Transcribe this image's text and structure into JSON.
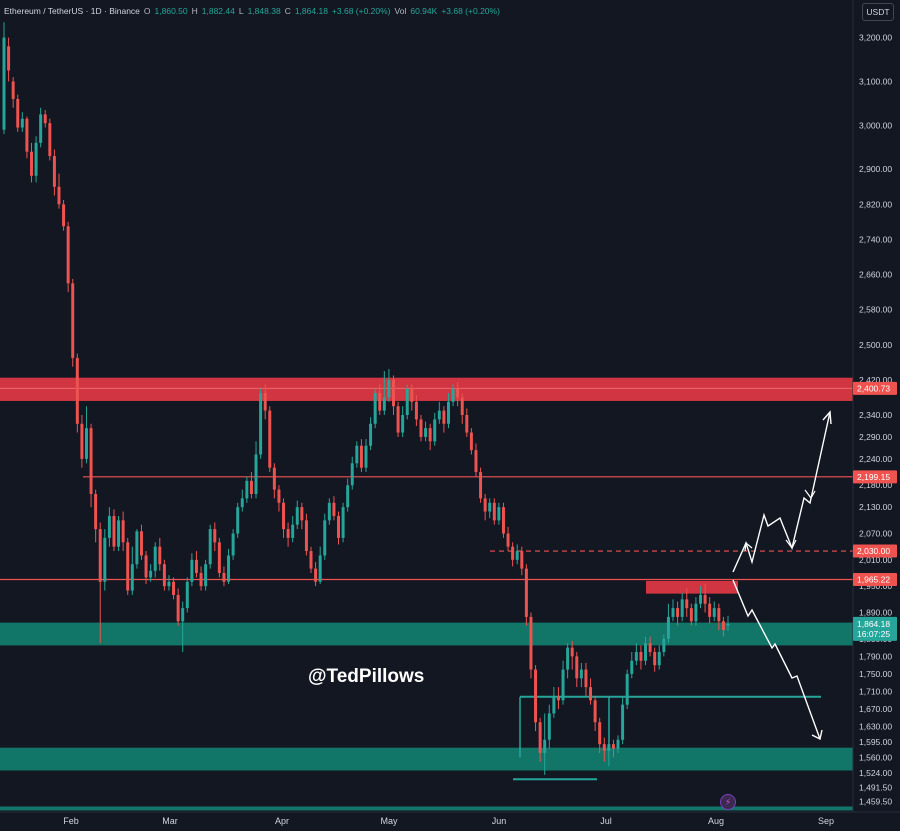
{
  "header": {
    "symbol": "Ethereum / TetherUS · 1D · Binance",
    "o_label": "O",
    "o_value": "1,860.50",
    "h_label": "H",
    "h_value": "1,882.44",
    "l_label": "L",
    "l_value": "1,848.38",
    "c_label": "C",
    "c_value": "1,864.18",
    "change": "+3.68 (+0.20%)",
    "vol_label": "Vol",
    "vol_value": "60.94K",
    "vol_change": "+3.68 (+0.20%)",
    "currency": "USDT"
  },
  "watermark": "@TedPillows",
  "colors": {
    "background": "#131722",
    "up": "#26a69a",
    "down": "#ef5350",
    "resistance_zone": "#e53945",
    "support_zone": "#128070",
    "axis_text": "#d1d4dc"
  },
  "icons": [
    "flash-icon"
  ],
  "chart_data": {
    "type": "candlestick",
    "symbol": "ETHUSDT",
    "interval": "1D",
    "ylim": [
      1440,
      3240
    ],
    "y_ticks": [
      {
        "v": 3200,
        "label": "3,200.00"
      },
      {
        "v": 3100,
        "label": "3,100.00"
      },
      {
        "v": 3000,
        "label": "3,000.00"
      },
      {
        "v": 2900,
        "label": "2,900.00"
      },
      {
        "v": 2820,
        "label": "2,820.00"
      },
      {
        "v": 2740,
        "label": "2,740.00"
      },
      {
        "v": 2660,
        "label": "2,660.00"
      },
      {
        "v": 2580,
        "label": "2,580.00"
      },
      {
        "v": 2500,
        "label": "2,500.00"
      },
      {
        "v": 2420,
        "label": "2,420.00"
      },
      {
        "v": 2340,
        "label": "2,340.00"
      },
      {
        "v": 2290,
        "label": "2,290.00"
      },
      {
        "v": 2240,
        "label": "2,240.00"
      },
      {
        "v": 2180,
        "label": "2,180.00"
      },
      {
        "v": 2130,
        "label": "2,130.00"
      },
      {
        "v": 2070,
        "label": "2,070.00"
      },
      {
        "v": 2010,
        "label": "2,010.00"
      },
      {
        "v": 1950,
        "label": "1,950.00"
      },
      {
        "v": 1890,
        "label": "1,890.00"
      },
      {
        "v": 1830,
        "label": "1,830.00"
      },
      {
        "v": 1790,
        "label": "1,790.00"
      },
      {
        "v": 1750,
        "label": "1,750.00"
      },
      {
        "v": 1710,
        "label": "1,710.00"
      },
      {
        "v": 1670,
        "label": "1,670.00"
      },
      {
        "v": 1630,
        "label": "1,630.00"
      },
      {
        "v": 1595,
        "label": "1,595.00"
      },
      {
        "v": 1560,
        "label": "1,560.00"
      },
      {
        "v": 1524,
        "label": "1,524.00"
      },
      {
        "v": 1491.5,
        "label": "1,491.50"
      },
      {
        "v": 1459.5,
        "label": "1,459.50"
      }
    ],
    "x_ticks": [
      "Feb",
      "Mar",
      "Apr",
      "May",
      "Jun",
      "Jul",
      "Aug",
      "Sep"
    ],
    "price_labels": [
      {
        "v": 2400.73,
        "label": "2,400.73"
      },
      {
        "v": 2199.15,
        "label": "2,199.15"
      },
      {
        "v": 2030.0,
        "label": "2,030.00"
      },
      {
        "v": 1965.22,
        "label": "1,965.22"
      }
    ],
    "current_price": {
      "v": 1864.18,
      "label": "1,864.18",
      "countdown": "16:07:25"
    },
    "zones": [
      {
        "kind": "resistance",
        "y_from": 2372,
        "y_to": 2425
      },
      {
        "kind": "resistance",
        "y_from": 1933,
        "y_to": 1962
      },
      {
        "kind": "support",
        "y_from": 1815,
        "y_to": 1867
      },
      {
        "kind": "support",
        "y_from": 1530,
        "y_to": 1582
      },
      {
        "kind": "support",
        "y_from": 1439,
        "y_to": 1448
      }
    ],
    "levels": [
      {
        "v": 2199.15,
        "color": "#ef5350",
        "style": "solid"
      },
      {
        "v": 2030,
        "color": "#ef5350",
        "style": "dashed"
      },
      {
        "v": 1965.22,
        "color": "#ef5350",
        "style": "solid"
      },
      {
        "v": 1698,
        "color": "#26a69a",
        "style": "solid"
      },
      {
        "v": 1510,
        "color": "#26a69a",
        "style": "solid"
      }
    ],
    "candles": [
      [
        2990,
        3200,
        3235,
        2980
      ],
      [
        3180,
        3125,
        3200,
        3100
      ],
      [
        3100,
        3060,
        3110,
        3040
      ],
      [
        3060,
        2995,
        3070,
        2985
      ],
      [
        2995,
        3015,
        3030,
        2985
      ],
      [
        3015,
        2940,
        3020,
        2925
      ],
      [
        2940,
        2885,
        2960,
        2870
      ],
      [
        2885,
        2960,
        2975,
        2870
      ],
      [
        2960,
        3025,
        3040,
        2950
      ],
      [
        3025,
        3005,
        3035,
        2995
      ],
      [
        3005,
        2930,
        3015,
        2920
      ],
      [
        2930,
        2860,
        2945,
        2840
      ],
      [
        2860,
        2820,
        2890,
        2810
      ],
      [
        2820,
        2770,
        2830,
        2760
      ],
      [
        2770,
        2640,
        2780,
        2620
      ],
      [
        2640,
        2470,
        2650,
        2450
      ],
      [
        2470,
        2320,
        2480,
        2300
      ],
      [
        2320,
        2240,
        2340,
        2220
      ],
      [
        2240,
        2310,
        2360,
        2230
      ],
      [
        2310,
        2160,
        2320,
        2130
      ],
      [
        2160,
        2080,
        2170,
        2050
      ],
      [
        2080,
        1960,
        2095,
        1820
      ],
      [
        1960,
        2060,
        2080,
        1940
      ],
      [
        2060,
        2110,
        2130,
        2040
      ],
      [
        2110,
        2040,
        2125,
        2030
      ],
      [
        2040,
        2100,
        2110,
        2030
      ],
      [
        2100,
        2050,
        2120,
        2030
      ],
      [
        2050,
        1940,
        2060,
        1930
      ],
      [
        1940,
        2000,
        2040,
        1930
      ],
      [
        2000,
        2075,
        2080,
        1990
      ],
      [
        2075,
        2020,
        2090,
        2010
      ],
      [
        2020,
        1970,
        2030,
        1955
      ],
      [
        1970,
        1985,
        2000,
        1960
      ],
      [
        1985,
        2040,
        2050,
        1970
      ],
      [
        2040,
        2000,
        2060,
        1985
      ],
      [
        2000,
        1950,
        2010,
        1940
      ],
      [
        1950,
        1960,
        1975,
        1940
      ],
      [
        1960,
        1930,
        1970,
        1920
      ],
      [
        1930,
        1870,
        1945,
        1860
      ],
      [
        1870,
        1900,
        1915,
        1800
      ],
      [
        1900,
        1960,
        1970,
        1890
      ],
      [
        1960,
        2010,
        2025,
        1950
      ],
      [
        2010,
        1980,
        2030,
        1970
      ],
      [
        1980,
        1950,
        1995,
        1940
      ],
      [
        1950,
        2000,
        2010,
        1940
      ],
      [
        2000,
        2080,
        2090,
        1990
      ],
      [
        2080,
        2050,
        2095,
        2030
      ],
      [
        2050,
        1980,
        2060,
        1970
      ],
      [
        1980,
        1960,
        1995,
        1950
      ],
      [
        1960,
        2020,
        2035,
        1955
      ],
      [
        2020,
        2070,
        2080,
        2010
      ],
      [
        2070,
        2130,
        2140,
        2060
      ],
      [
        2130,
        2150,
        2170,
        2120
      ],
      [
        2150,
        2190,
        2200,
        2140
      ],
      [
        2190,
        2160,
        2210,
        2150
      ],
      [
        2160,
        2250,
        2280,
        2150
      ],
      [
        2250,
        2390,
        2400,
        2240
      ],
      [
        2390,
        2350,
        2410,
        2330
      ],
      [
        2350,
        2220,
        2360,
        2210
      ],
      [
        2220,
        2170,
        2230,
        2150
      ],
      [
        2170,
        2140,
        2180,
        2120
      ],
      [
        2140,
        2080,
        2150,
        2060
      ],
      [
        2080,
        2060,
        2095,
        2040
      ],
      [
        2060,
        2090,
        2110,
        2050
      ],
      [
        2090,
        2130,
        2145,
        2080
      ],
      [
        2130,
        2100,
        2140,
        2080
      ],
      [
        2100,
        2030,
        2115,
        2020
      ],
      [
        2030,
        1990,
        2040,
        1980
      ],
      [
        1990,
        1960,
        2005,
        1950
      ],
      [
        1960,
        2020,
        2040,
        1955
      ],
      [
        2020,
        2100,
        2115,
        2010
      ],
      [
        2100,
        2140,
        2150,
        2090
      ],
      [
        2140,
        2110,
        2155,
        2100
      ],
      [
        2110,
        2060,
        2120,
        2045
      ],
      [
        2060,
        2130,
        2140,
        2050
      ],
      [
        2130,
        2180,
        2195,
        2120
      ],
      [
        2180,
        2230,
        2245,
        2170
      ],
      [
        2230,
        2270,
        2280,
        2220
      ],
      [
        2270,
        2220,
        2285,
        2210
      ],
      [
        2220,
        2270,
        2285,
        2210
      ],
      [
        2270,
        2320,
        2335,
        2260
      ],
      [
        2320,
        2390,
        2400,
        2310
      ],
      [
        2390,
        2350,
        2410,
        2340
      ],
      [
        2350,
        2380,
        2440,
        2340
      ],
      [
        2380,
        2420,
        2445,
        2370
      ],
      [
        2420,
        2360,
        2430,
        2340
      ],
      [
        2360,
        2300,
        2370,
        2290
      ],
      [
        2300,
        2340,
        2360,
        2290
      ],
      [
        2340,
        2400,
        2410,
        2330
      ],
      [
        2400,
        2370,
        2410,
        2350
      ],
      [
        2370,
        2330,
        2385,
        2315
      ],
      [
        2330,
        2290,
        2340,
        2280
      ],
      [
        2290,
        2310,
        2325,
        2280
      ],
      [
        2310,
        2280,
        2320,
        2260
      ],
      [
        2280,
        2330,
        2345,
        2270
      ],
      [
        2330,
        2350,
        2370,
        2320
      ],
      [
        2350,
        2320,
        2360,
        2300
      ],
      [
        2320,
        2370,
        2390,
        2310
      ],
      [
        2370,
        2400,
        2410,
        2360
      ],
      [
        2400,
        2380,
        2415,
        2360
      ],
      [
        2380,
        2340,
        2390,
        2320
      ],
      [
        2340,
        2300,
        2355,
        2290
      ],
      [
        2300,
        2260,
        2310,
        2250
      ],
      [
        2260,
        2210,
        2275,
        2200
      ],
      [
        2210,
        2150,
        2220,
        2140
      ],
      [
        2150,
        2120,
        2160,
        2100
      ],
      [
        2120,
        2140,
        2150,
        2105
      ],
      [
        2140,
        2100,
        2150,
        2090
      ],
      [
        2100,
        2130,
        2140,
        2090
      ],
      [
        2130,
        2070,
        2140,
        2060
      ],
      [
        2070,
        2040,
        2085,
        2030
      ],
      [
        2040,
        2010,
        2050,
        1995
      ],
      [
        2010,
        2030,
        2045,
        2000
      ],
      [
        2030,
        1990,
        2040,
        1975
      ],
      [
        1990,
        1880,
        2000,
        1860
      ],
      [
        1880,
        1760,
        1890,
        1740
      ],
      [
        1760,
        1640,
        1770,
        1620
      ],
      [
        1640,
        1570,
        1650,
        1550
      ],
      [
        1570,
        1600,
        1660,
        1520
      ],
      [
        1600,
        1660,
        1680,
        1580
      ],
      [
        1660,
        1700,
        1720,
        1650
      ],
      [
        1700,
        1690,
        1720,
        1670
      ],
      [
        1690,
        1760,
        1780,
        1680
      ],
      [
        1760,
        1810,
        1820,
        1740
      ],
      [
        1810,
        1790,
        1825,
        1760
      ],
      [
        1790,
        1740,
        1800,
        1720
      ],
      [
        1740,
        1760,
        1775,
        1720
      ],
      [
        1760,
        1720,
        1775,
        1700
      ],
      [
        1720,
        1690,
        1740,
        1680
      ],
      [
        1690,
        1640,
        1700,
        1620
      ],
      [
        1640,
        1590,
        1650,
        1570
      ],
      [
        1590,
        1575,
        1605,
        1550
      ],
      [
        1575,
        1590,
        1600,
        1540
      ],
      [
        1590,
        1580,
        1600,
        1560
      ],
      [
        1580,
        1600,
        1610,
        1570
      ],
      [
        1600,
        1680,
        1700,
        1590
      ],
      [
        1680,
        1750,
        1760,
        1670
      ],
      [
        1750,
        1780,
        1800,
        1740
      ],
      [
        1780,
        1800,
        1820,
        1770
      ],
      [
        1800,
        1780,
        1815,
        1760
      ],
      [
        1780,
        1820,
        1835,
        1770
      ],
      [
        1820,
        1800,
        1835,
        1790
      ],
      [
        1800,
        1770,
        1810,
        1755
      ],
      [
        1770,
        1800,
        1815,
        1760
      ],
      [
        1800,
        1830,
        1840,
        1790
      ],
      [
        1830,
        1880,
        1910,
        1820
      ],
      [
        1880,
        1900,
        1920,
        1870
      ],
      [
        1900,
        1880,
        1915,
        1860
      ],
      [
        1880,
        1920,
        1935,
        1870
      ],
      [
        1920,
        1900,
        1945,
        1880
      ],
      [
        1900,
        1870,
        1910,
        1860
      ],
      [
        1870,
        1910,
        1925,
        1860
      ],
      [
        1910,
        1930,
        1950,
        1900
      ],
      [
        1930,
        1910,
        1955,
        1890
      ],
      [
        1910,
        1880,
        1925,
        1865
      ],
      [
        1880,
        1900,
        1915,
        1870
      ],
      [
        1900,
        1870,
        1910,
        1850
      ],
      [
        1870,
        1850,
        1880,
        1835
      ],
      [
        1860.5,
        1864.18,
        1882.44,
        1848.38
      ]
    ]
  }
}
